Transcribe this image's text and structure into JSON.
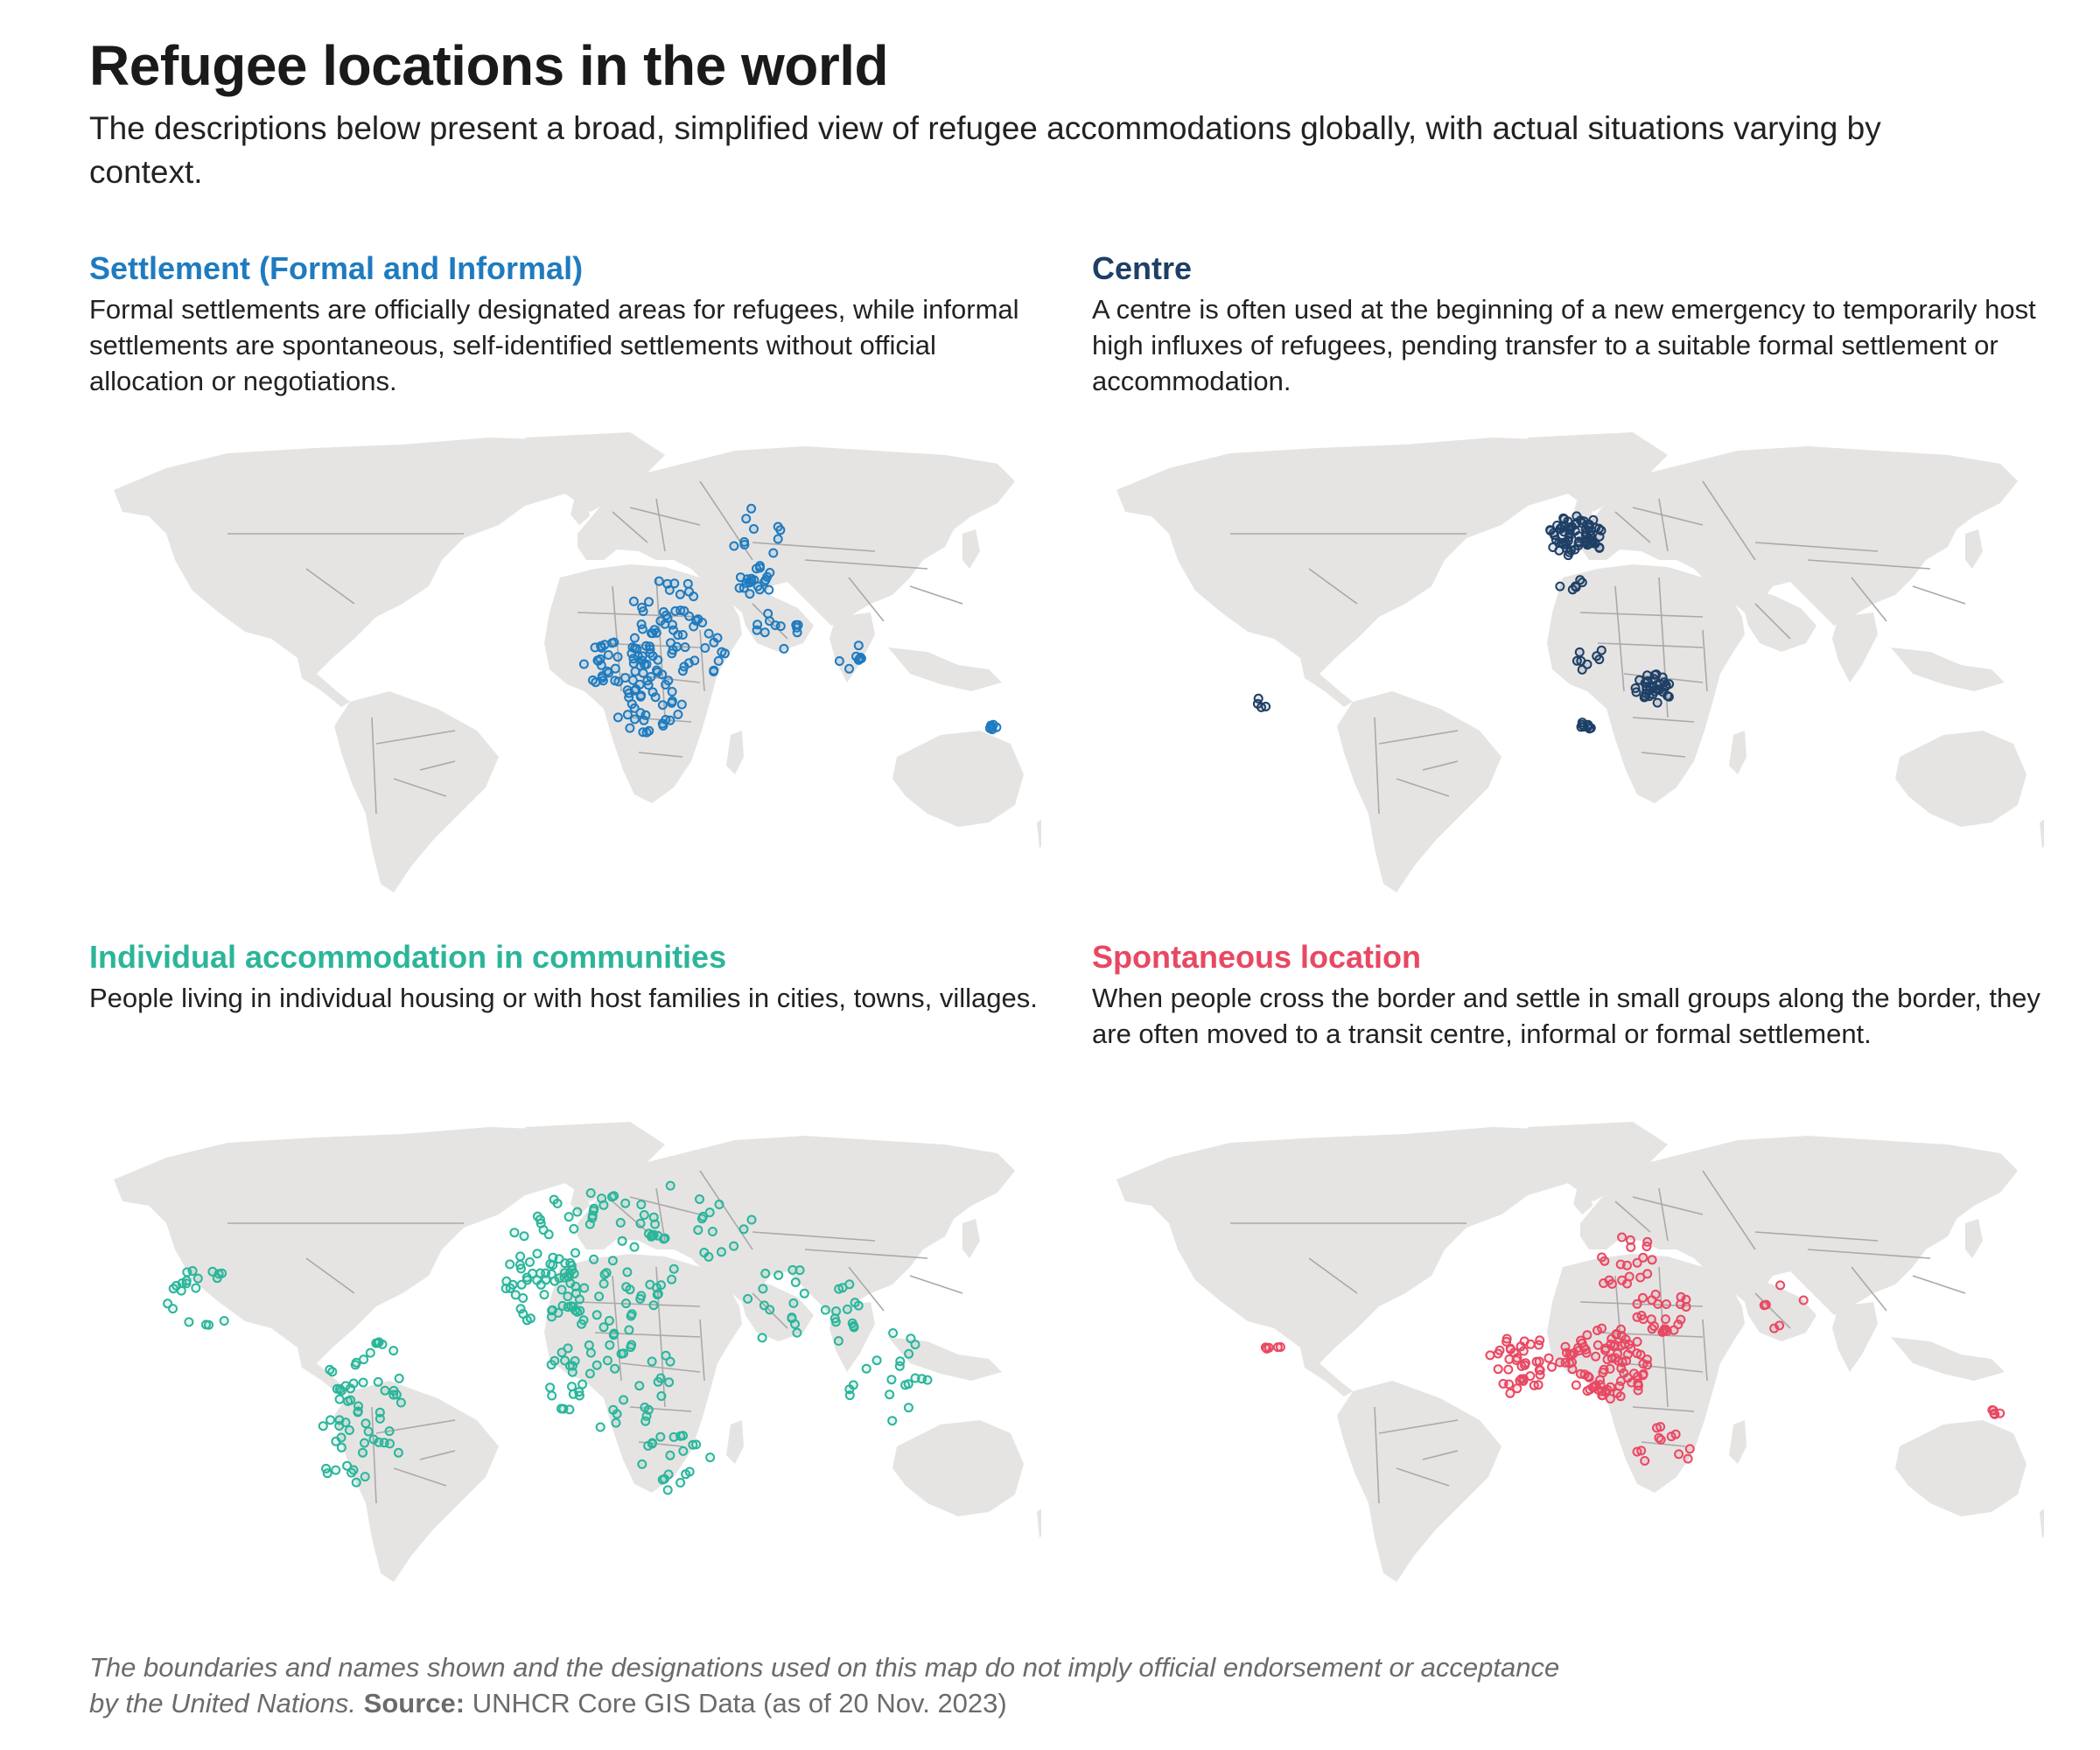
{
  "title": "Refugee locations in the world",
  "subtitle": "The descriptions below present a broad, simplified view of refugee accommodations globally, with actual situations varying by context.",
  "colors": {
    "land": "#e6e4e3",
    "borders": "#a9a9a9",
    "settlement": "#1f7bbf",
    "centre": "#1e3f66",
    "individual": "#2bb59a",
    "spontaneous": "#e84862"
  },
  "panels": [
    {
      "id": "settlement",
      "title": "Settlement (Formal and Informal)",
      "description": "Formal settlements are officially designated areas for refugees, while informal settlements are spontaneous, self-identified settlements without official allocation or negotiations.",
      "color": "#1f7bbf"
    },
    {
      "id": "centre",
      "title": "Centre",
      "description": "A centre is often used at the beginning of a new emergency to temporarily host high influxes of refugees, pending transfer to a suitable formal settlement or accommodation.",
      "color": "#1e3f66"
    },
    {
      "id": "individual",
      "title": "Individual accommodation in communities",
      "description": "People living in individual housing or with host families in cities, towns, villages.",
      "color": "#2bb59a"
    },
    {
      "id": "spontaneous",
      "title": "Spontaneous location",
      "description": "When people cross the border and settle in small groups along the border, they are often moved to a transit centre, informal or formal settlement.",
      "color": "#e84862"
    }
  ],
  "footer": {
    "note": "The boundaries and names shown and the designations used on this map do not imply official endorsement or acceptance by the United Nations.",
    "source_label": "Source:",
    "source_text": "UNHCR Core GIS Data (as of 20 Nov. 2023)"
  }
}
